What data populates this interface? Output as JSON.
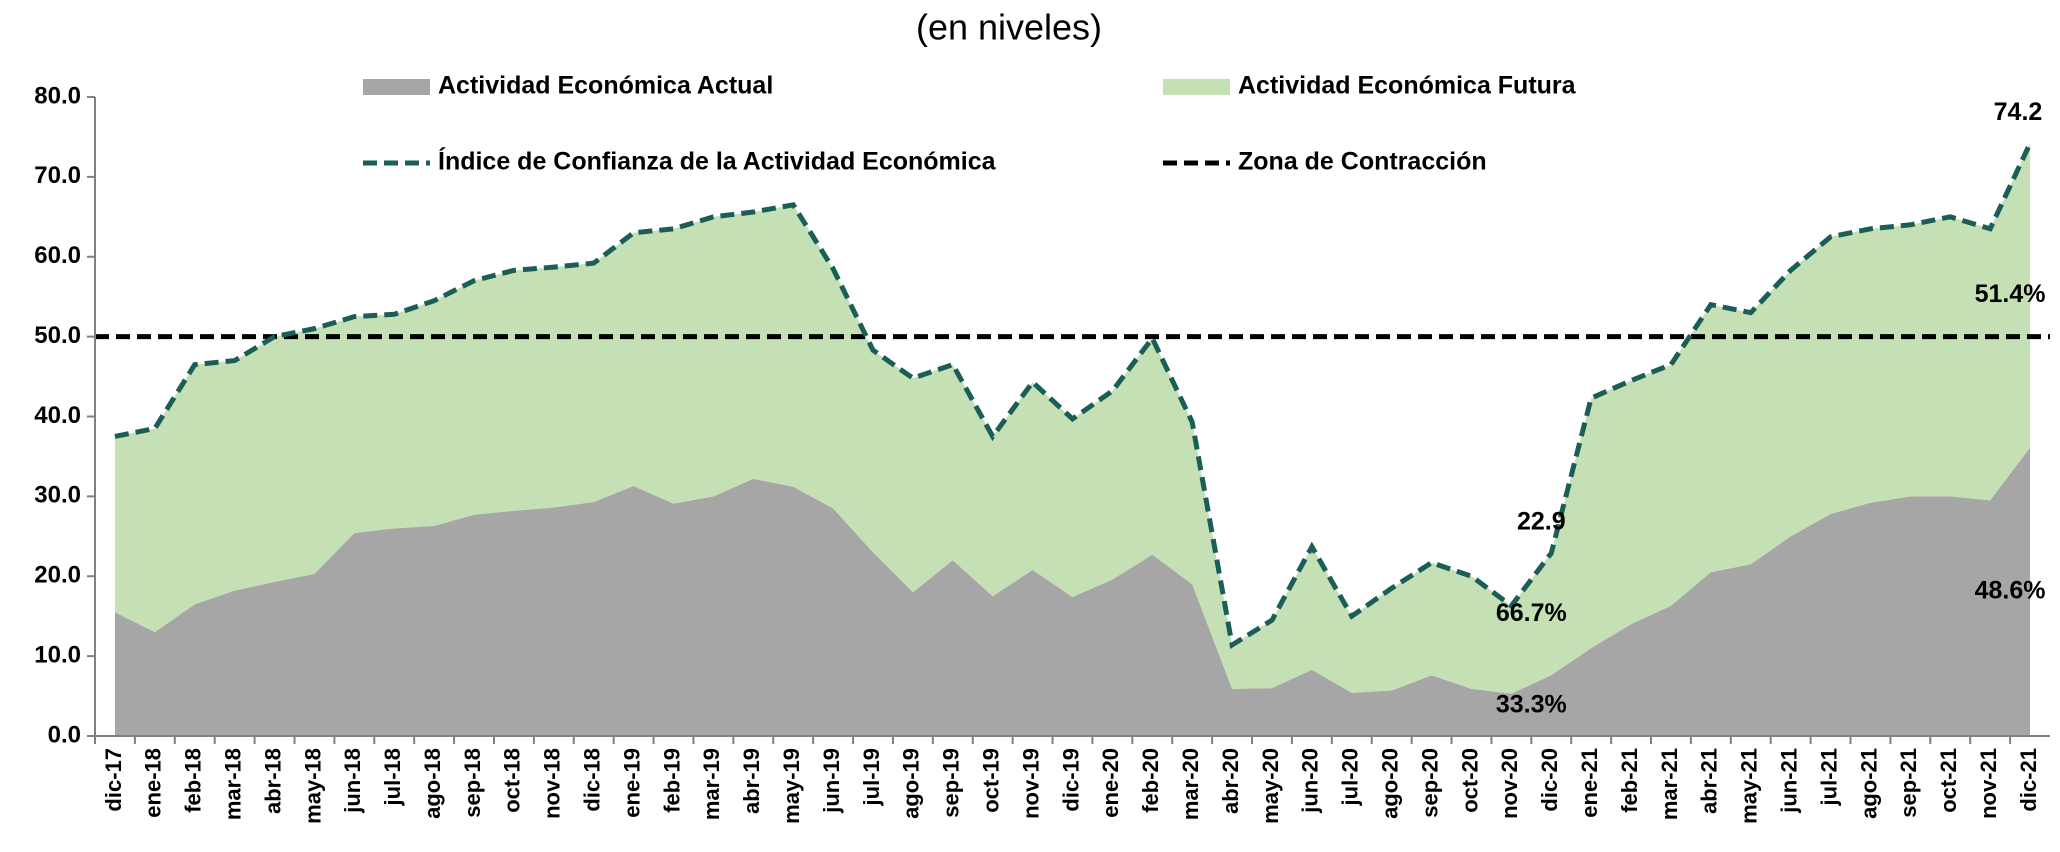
{
  "chart_data": {
    "type": "area",
    "subtitle": "(en niveles)",
    "stacked": true,
    "categories": [
      "dic-17",
      "ene-18",
      "feb-18",
      "mar-18",
      "abr-18",
      "may-18",
      "jun-18",
      "jul-18",
      "ago-18",
      "sep-18",
      "oct-18",
      "nov-18",
      "dic-18",
      "ene-19",
      "feb-19",
      "mar-19",
      "abr-19",
      "may-19",
      "jun-19",
      "jul-19",
      "ago-19",
      "sep-19",
      "oct-19",
      "nov-19",
      "dic-19",
      "ene-20",
      "feb-20",
      "mar-20",
      "abr-20",
      "may-20",
      "jun-20",
      "jul-20",
      "ago-20",
      "sep-20",
      "oct-20",
      "nov-20",
      "dic-20",
      "ene-21",
      "feb-21",
      "mar-21",
      "abr-21",
      "may-21",
      "jun-21",
      "jul-21",
      "ago-21",
      "sep-21",
      "oct-21",
      "nov-21",
      "dic-21"
    ],
    "series": [
      {
        "name": "Actividad Económica Actual",
        "kind": "area",
        "color": "#a6a6a6",
        "values": [
          15.5,
          13,
          16.5,
          18.2,
          19.3,
          20.3,
          25.4,
          26,
          26.3,
          27.7,
          28.2,
          28.6,
          29.3,
          31.3,
          29.1,
          30,
          32.2,
          31.2,
          28.5,
          23,
          18,
          22,
          17.5,
          20.8,
          17.4,
          19.6,
          22.7,
          19,
          5.9,
          6,
          8.3,
          5.4,
          5.7,
          7.6,
          5.9,
          5.3,
          7.6,
          11,
          14,
          16.3,
          20.5,
          21.5,
          25,
          27.8,
          29.2,
          30,
          30,
          29.5,
          36.1
        ],
        "share_labels": [
          null,
          null,
          null,
          null,
          null,
          null,
          null,
          null,
          null,
          null,
          null,
          null,
          null,
          null,
          null,
          null,
          null,
          null,
          null,
          null,
          null,
          null,
          null,
          null,
          null,
          null,
          null,
          null,
          null,
          null,
          null,
          null,
          null,
          null,
          null,
          null,
          "33.3%",
          null,
          null,
          null,
          null,
          null,
          null,
          null,
          null,
          null,
          null,
          null,
          "48.6%"
        ]
      },
      {
        "name": "Actividad Económica Futura",
        "kind": "area",
        "color": "#c5e0b4",
        "values": [
          22,
          25.5,
          30,
          28.8,
          30.7,
          30.7,
          27.1,
          26.8,
          28.2,
          29.3,
          30.1,
          30.1,
          29.9,
          31.7,
          34.4,
          35,
          33.4,
          35.3,
          30,
          25.3,
          26.8,
          24.5,
          20,
          23.5,
          22.3,
          23.6,
          27.1,
          20.3,
          5.5,
          8.5,
          15.4,
          9.6,
          12.8,
          14.1,
          14.1,
          11,
          15.3,
          31.3,
          30.5,
          30.2,
          33.5,
          31.5,
          33.3,
          34.7,
          34.3,
          34,
          35,
          34,
          38.1
        ],
        "share_labels": [
          null,
          null,
          null,
          null,
          null,
          null,
          null,
          null,
          null,
          null,
          null,
          null,
          null,
          null,
          null,
          null,
          null,
          null,
          null,
          null,
          null,
          null,
          null,
          null,
          null,
          null,
          null,
          null,
          null,
          null,
          null,
          null,
          null,
          null,
          null,
          null,
          "66.7%",
          null,
          null,
          null,
          null,
          null,
          null,
          null,
          null,
          null,
          null,
          null,
          "51.4%"
        ]
      },
      {
        "name": "Índice de Confianza de la Actividad Económica",
        "kind": "line",
        "dashed": true,
        "color": "#1a5e57",
        "values": [
          37.5,
          38.5,
          46.5,
          47,
          50,
          51,
          52.5,
          52.8,
          54.5,
          57,
          58.3,
          58.7,
          59.2,
          63,
          63.5,
          65,
          65.6,
          66.5,
          58.5,
          48.3,
          44.8,
          46.5,
          37.5,
          44.3,
          39.7,
          43.2,
          49.8,
          39.3,
          11.4,
          14.5,
          23.7,
          15,
          18.5,
          21.7,
          20,
          16.3,
          22.9,
          42.3,
          44.5,
          46.5,
          54,
          53,
          58.3,
          62.5,
          63.5,
          64,
          65,
          63.5,
          74.2
        ],
        "value_labels": [
          null,
          null,
          null,
          null,
          null,
          null,
          null,
          null,
          null,
          null,
          null,
          null,
          null,
          null,
          null,
          null,
          null,
          null,
          null,
          null,
          null,
          null,
          null,
          null,
          null,
          null,
          null,
          null,
          null,
          null,
          null,
          null,
          null,
          null,
          null,
          null,
          "22.9",
          null,
          null,
          null,
          null,
          null,
          null,
          null,
          null,
          null,
          null,
          null,
          "74.2"
        ]
      }
    ],
    "reference": {
      "name": "Zona de Contracción",
      "value": 50,
      "color": "#000000",
      "dashed": true
    },
    "ylim": [
      0,
      80
    ],
    "yticks": [
      {
        "value": 0,
        "label": "0.0"
      },
      {
        "value": 10,
        "label": "10.0"
      },
      {
        "value": 20,
        "label": "20.0"
      },
      {
        "value": 30,
        "label": "30.0"
      },
      {
        "value": 40,
        "label": "40.0"
      },
      {
        "value": 50,
        "label": "50.0"
      },
      {
        "value": 60,
        "label": "60.0"
      },
      {
        "value": 70,
        "label": "70.0"
      },
      {
        "value": 80,
        "label": "80.0"
      }
    ],
    "grid": false
  }
}
